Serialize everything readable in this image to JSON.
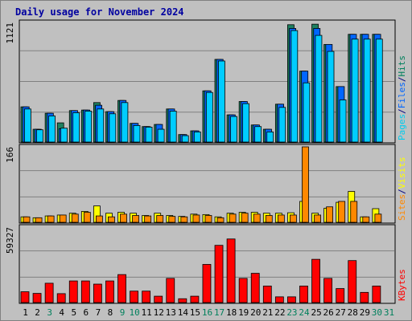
{
  "chart_data": {
    "type": "bar",
    "title": "Daily usage for November 2024",
    "days": [
      "1",
      "2",
      "3",
      "4",
      "5",
      "6",
      "7",
      "8",
      "9",
      "10",
      "11",
      "12",
      "13",
      "14",
      "15",
      "16",
      "17",
      "18",
      "19",
      "20",
      "21",
      "22",
      "23",
      "24",
      "25",
      "26",
      "27",
      "28",
      "29",
      "30",
      "31"
    ],
    "weekend_days": [
      "3",
      "9",
      "10",
      "16",
      "17",
      "23",
      "24",
      "30",
      "31"
    ],
    "panels": [
      {
        "id": "top",
        "max_label": "1121",
        "ymax": 1121,
        "legend": [
          {
            "text": "Pages",
            "color": "#00ccee"
          },
          {
            "text": "/",
            "color": "#000080"
          },
          {
            "text": "Files",
            "color": "#0066ff"
          },
          {
            "text": "/",
            "color": "#000080"
          },
          {
            "text": "Hits",
            "color": "#00805c"
          }
        ],
        "series": [
          {
            "name": "Hits",
            "color": "#1e8060",
            "values": [
              330,
              120,
              270,
              180,
              295,
              300,
              370,
              285,
              390,
              175,
              145,
              165,
              310,
              70,
              105,
              480,
              775,
              255,
              380,
              160,
              120,
              355,
              1100,
              665,
              1105,
              915,
              520,
              1010,
              1010,
              1010,
              0
            ]
          },
          {
            "name": "Files",
            "color": "#0066ff",
            "values": [
              330,
              120,
              270,
              125,
              295,
              300,
              345,
              285,
              390,
              175,
              145,
              165,
              310,
              70,
              105,
              480,
              775,
              255,
              380,
              160,
              120,
              355,
              1065,
              665,
              1065,
              915,
              520,
              1010,
              1010,
              1010,
              0
            ]
          },
          {
            "name": "Pages",
            "color": "#00ccff",
            "values": [
              310,
              115,
              245,
              130,
              275,
              290,
              310,
              265,
              370,
              155,
              140,
              120,
              290,
              60,
              95,
              465,
              760,
              240,
              360,
              145,
              95,
              325,
              1045,
              555,
              1000,
              850,
              395,
              965,
              965,
              965,
              0
            ]
          }
        ]
      },
      {
        "id": "middle",
        "max_label": "166",
        "ymax": 166,
        "legend": [
          {
            "text": "Sites",
            "color": "#ff8800"
          },
          {
            "text": "/",
            "color": "#000080"
          },
          {
            "text": "Visits",
            "color": "#ffff00"
          }
        ],
        "series": [
          {
            "name": "Visits",
            "color": "#ffff00",
            "values": [
              12,
              10,
              14,
              16,
              20,
              24,
              36,
              20,
              22,
              20,
              15,
              20,
              15,
              13,
              18,
              17,
              12,
              20,
              22,
              22,
              20,
              20,
              21,
              46,
              20,
              31,
              44,
              68,
              12,
              30,
              0
            ]
          },
          {
            "name": "Sites",
            "color": "#ff8800",
            "values": [
              12,
              10,
              14,
              16,
              18,
              22,
              14,
              12,
              18,
              15,
              14,
              15,
              13,
              12,
              16,
              15,
              10,
              18,
              20,
              18,
              15,
              16,
              16,
              166,
              16,
              34,
              46,
              46,
              12,
              18,
              0
            ]
          }
        ]
      },
      {
        "id": "bottom",
        "max_label": "59327",
        "ymax": 59327,
        "legend": [
          {
            "text": "KBytes",
            "color": "#ff0000"
          }
        ],
        "series": [
          {
            "name": "KBytes",
            "color": "#ff0000",
            "values": [
              8500,
              7200,
              15200,
              7000,
              17000,
              17000,
              14500,
              17000,
              22000,
              9000,
              9000,
              5000,
              19000,
              3000,
              5000,
              30000,
              45000,
              50000,
              19000,
              23000,
              13000,
              4500,
              4500,
              13000,
              34000,
              19000,
              11000,
              33000,
              8000,
              13000,
              0
            ]
          }
        ]
      }
    ]
  }
}
